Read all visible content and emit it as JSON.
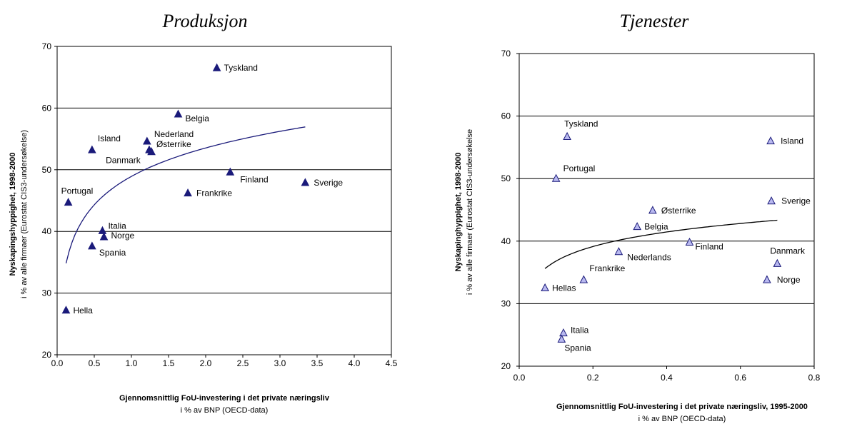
{
  "chart_data": [
    {
      "type": "scatter",
      "title": "Produksjon",
      "ylabel": "Nyskapingshyppighet, 1998-2000",
      "ylabel2": "i  % av alle firmaer (Eurostat CIS3-undersøkelse)",
      "xlabel": "Gjennomsnittlig FoU-investering i det private næringsliv",
      "xlabel2": "i  % av BNP (OECD-data)",
      "xlim": [
        0,
        4.5
      ],
      "ylim": [
        20,
        70
      ],
      "xticks": [
        "0.0",
        "0.5",
        "1.0",
        "1.5",
        "2.0",
        "2.5",
        "3.0",
        "3.5",
        "4.0",
        "4.5"
      ],
      "yticks": [
        "20",
        "30",
        "40",
        "50",
        "60",
        "70"
      ],
      "grid": "horizontal",
      "marker": "filled-triangle",
      "marker_color": "#1a1a7a",
      "trend": "logarithmic",
      "trend_color": "#1a1a7a",
      "points": [
        {
          "label": "Tyskland",
          "x": 2.15,
          "y": 66.5
        },
        {
          "label": "Belgia",
          "x": 1.63,
          "y": 59.0
        },
        {
          "label": "Nederland",
          "x": 1.21,
          "y": 54.6
        },
        {
          "label": "Island",
          "x": 0.47,
          "y": 53.2
        },
        {
          "label": "Østerrike",
          "x": 1.24,
          "y": 53.2
        },
        {
          "label": "Danmark",
          "x": 1.27,
          "y": 52.9
        },
        {
          "label": "Finland",
          "x": 2.33,
          "y": 49.6
        },
        {
          "label": "Sverige",
          "x": 3.34,
          "y": 47.9
        },
        {
          "label": "Frankrike",
          "x": 1.76,
          "y": 46.2
        },
        {
          "label": "Portugal",
          "x": 0.15,
          "y": 44.7
        },
        {
          "label": "Italia",
          "x": 0.61,
          "y": 40.1
        },
        {
          "label": "Norge",
          "x": 0.63,
          "y": 39.1
        },
        {
          "label": "Spania",
          "x": 0.47,
          "y": 37.6
        },
        {
          "label": "Hella",
          "x": 0.12,
          "y": 27.2
        }
      ]
    },
    {
      "type": "scatter",
      "title": "Tjenester",
      "ylabel": "Nyskapinghyppighet, 1998-2000",
      "ylabel2": "i  % av alle firmaer (Eurostat CIS3-undersøkelse",
      "xlabel": "Gjennomsnittlig FoU-investering i det private næringsliv, 1995-2000",
      "xlabel2": "i  % av BNP (OECD-data)",
      "xlim": [
        0,
        0.8
      ],
      "ylim": [
        20,
        70
      ],
      "xticks": [
        "0.0",
        "0.2",
        "0.4",
        "0.6",
        "0.8"
      ],
      "yticks": [
        "20",
        "30",
        "40",
        "50",
        "60",
        "70"
      ],
      "grid": "horizontal",
      "marker": "hollow-triangle",
      "marker_color": "#1a1a7a",
      "marker_fill": "#b9b9f0",
      "trend": "logarithmic",
      "trend_color": "#000000",
      "points": [
        {
          "label": "Tyskland",
          "x": 0.13,
          "y": 56.7
        },
        {
          "label": "Island",
          "x": 0.682,
          "y": 56.0
        },
        {
          "label": "Portugal",
          "x": 0.1,
          "y": 50.0
        },
        {
          "label": "Sverige",
          "x": 0.684,
          "y": 46.4
        },
        {
          "label": "Østerrike",
          "x": 0.362,
          "y": 44.9
        },
        {
          "label": "Belgia",
          "x": 0.32,
          "y": 42.3
        },
        {
          "label": "Finland",
          "x": 0.462,
          "y": 39.8
        },
        {
          "label": "Nederlands",
          "x": 0.27,
          "y": 38.3
        },
        {
          "label": "Danmark",
          "x": 0.7,
          "y": 36.4
        },
        {
          "label": "Frankrike",
          "x": 0.175,
          "y": 33.8
        },
        {
          "label": "Norge",
          "x": 0.672,
          "y": 33.8
        },
        {
          "label": "Hellas",
          "x": 0.07,
          "y": 32.5
        },
        {
          "label": "Italia",
          "x": 0.12,
          "y": 25.3
        },
        {
          "label": "Spania",
          "x": 0.115,
          "y": 24.3
        }
      ]
    }
  ]
}
